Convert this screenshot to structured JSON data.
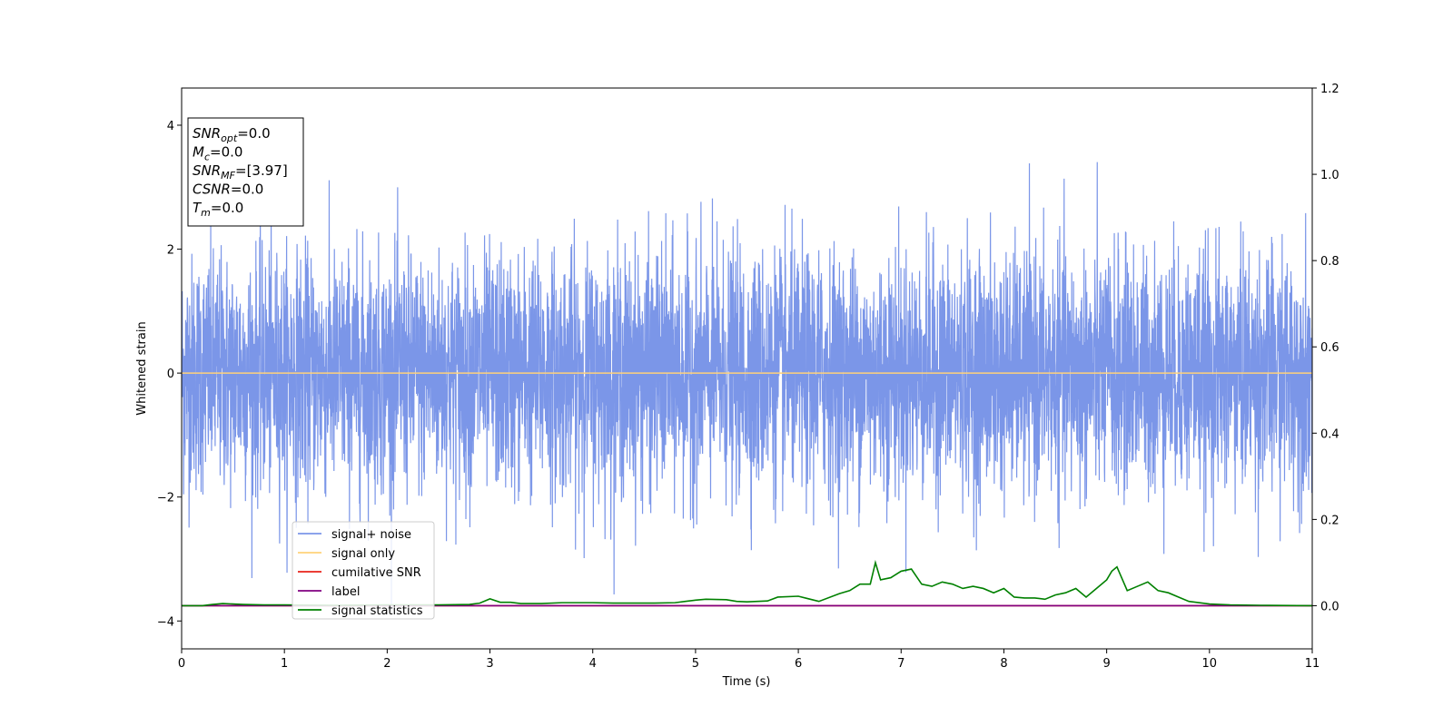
{
  "chart_data": {
    "type": "line",
    "title": "",
    "xlabel": "Time (s)",
    "ylabel": "Whitened strain",
    "xlim": [
      0,
      11
    ],
    "ylim": [
      -4.45,
      4.6
    ],
    "y2lim": [
      -0.1,
      1.2
    ],
    "grid": false,
    "x_ticks": [
      "0",
      "1",
      "2",
      "3",
      "4",
      "5",
      "6",
      "7",
      "8",
      "9",
      "10",
      "11"
    ],
    "y_ticks": [
      "−4",
      "−2",
      "0",
      "2",
      "4"
    ],
    "y2_ticks": [
      "0.0",
      "0.2",
      "0.4",
      "0.6",
      "0.8",
      "1.0",
      "1.2"
    ],
    "legend_position": "lower-left",
    "series": [
      {
        "name": "signal+ noise",
        "color": "#7b96e8",
        "axis": "left",
        "kind": "noise",
        "sample_rate_hz": 512,
        "std": 0.95,
        "min": -4.05,
        "max": 3.88
      },
      {
        "name": "signal only",
        "color": "#ffd27a",
        "axis": "left",
        "x": [
          0,
          11
        ],
        "y": [
          0,
          0
        ]
      },
      {
        "name": "cumilative SNR",
        "color": "#e8231a",
        "axis": "right",
        "x": [
          0,
          11
        ],
        "y": [
          0,
          0
        ]
      },
      {
        "name": "label",
        "color": "#800080",
        "axis": "right",
        "x": [
          0,
          11
        ],
        "y": [
          0,
          0
        ]
      },
      {
        "name": "signal statistics",
        "color": "#008000",
        "axis": "right",
        "x": [
          0,
          0.2,
          0.3,
          0.4,
          0.6,
          0.8,
          1.0,
          1.5,
          2.0,
          2.5,
          2.8,
          2.9,
          3.0,
          3.1,
          3.2,
          3.3,
          3.5,
          3.7,
          3.9,
          4.0,
          4.2,
          4.4,
          4.6,
          4.8,
          4.9,
          5.0,
          5.1,
          5.3,
          5.4,
          5.5,
          5.7,
          5.8,
          6.0,
          6.2,
          6.4,
          6.5,
          6.6,
          6.7,
          6.75,
          6.8,
          6.9,
          7.0,
          7.1,
          7.2,
          7.3,
          7.4,
          7.5,
          7.6,
          7.7,
          7.8,
          7.9,
          8.0,
          8.1,
          8.2,
          8.3,
          8.4,
          8.5,
          8.6,
          8.7,
          8.8,
          8.9,
          9.0,
          9.05,
          9.1,
          9.2,
          9.3,
          9.4,
          9.5,
          9.6,
          9.7,
          9.8,
          10.0,
          10.2,
          10.5,
          11.0
        ],
        "y": [
          0.0,
          0.0,
          0.003,
          0.005,
          0.003,
          0.002,
          0.002,
          0.001,
          0.002,
          0.002,
          0.003,
          0.006,
          0.016,
          0.008,
          0.008,
          0.005,
          0.005,
          0.007,
          0.007,
          0.007,
          0.006,
          0.006,
          0.006,
          0.007,
          0.01,
          0.013,
          0.015,
          0.014,
          0.01,
          0.009,
          0.011,
          0.02,
          0.022,
          0.01,
          0.028,
          0.035,
          0.05,
          0.05,
          0.1,
          0.06,
          0.065,
          0.08,
          0.085,
          0.05,
          0.045,
          0.055,
          0.05,
          0.04,
          0.045,
          0.04,
          0.03,
          0.04,
          0.02,
          0.018,
          0.018,
          0.015,
          0.025,
          0.03,
          0.04,
          0.02,
          0.04,
          0.06,
          0.08,
          0.09,
          0.035,
          0.045,
          0.055,
          0.035,
          0.03,
          0.02,
          0.01,
          0.004,
          0.002,
          0.001,
          0.0
        ]
      }
    ]
  },
  "info_box": {
    "lines": [
      {
        "symbol": "SNR",
        "sub": "opt",
        "value": "=0.0"
      },
      {
        "symbol": "M",
        "sub": "c",
        "value": "=0.0"
      },
      {
        "symbol": "SNR",
        "sub": "MF",
        "value": "=[3.97]"
      },
      {
        "symbol": "CSNR",
        "sub": "",
        "value": "=0.0"
      },
      {
        "symbol": "T",
        "sub": "m",
        "value": "=0.0"
      }
    ]
  }
}
